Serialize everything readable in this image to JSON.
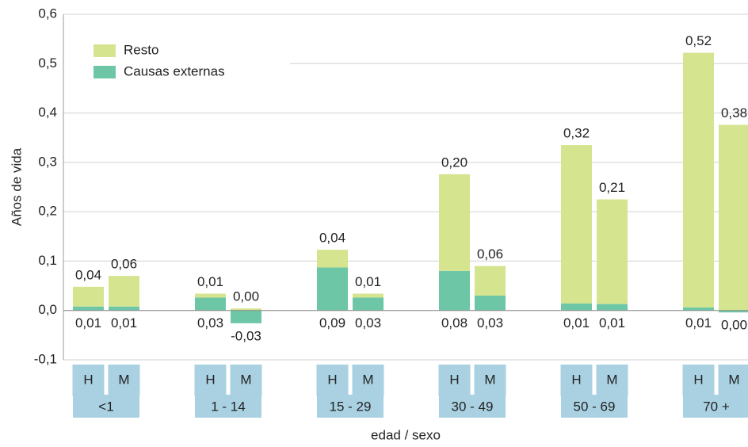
{
  "chart_data": {
    "type": "bar",
    "stacked": true,
    "y_label": "Años de vida",
    "x_label": "edad / sexo",
    "groups": [
      "<1",
      "1 - 14",
      "15 - 29",
      "30 - 49",
      "50 - 69",
      "70 +"
    ],
    "categories": [
      "H",
      "M",
      "H",
      "M",
      "H",
      "M",
      "H",
      "M",
      "H",
      "M",
      "H",
      "M"
    ],
    "series": [
      {
        "name": "Causas externas",
        "color": "#6dc7a7",
        "values": [
          0.008,
          0.008,
          0.026,
          -0.026,
          0.087,
          0.026,
          0.08,
          0.03,
          0.014,
          0.013,
          0.006,
          -0.004
        ],
        "value_labels": [
          "0,01",
          "0,01",
          "0,03",
          "-0,03",
          "0,09",
          "0,03",
          "0,08",
          "0,03",
          "0,01",
          "0,01",
          "0,01",
          "0,00"
        ]
      },
      {
        "name": "Resto",
        "color": "#d5e48f",
        "values": [
          0.04,
          0.062,
          0.008,
          0.004,
          0.036,
          0.008,
          0.196,
          0.06,
          0.321,
          0.212,
          0.516,
          0.376
        ],
        "value_labels": [
          "0,04",
          "0,06",
          "0,01",
          "0,00",
          "0,04",
          "0,01",
          "0,20",
          "0,06",
          "0,32",
          "0,21",
          "0,52",
          "0,38"
        ]
      }
    ],
    "ylim": [
      -0.1,
      0.6
    ],
    "yticks": [
      {
        "value": -0.1,
        "label": "-0,1"
      },
      {
        "value": 0,
        "label": "0,0"
      },
      {
        "value": 0.1,
        "label": "0,1"
      },
      {
        "value": 0.2,
        "label": "0,2"
      },
      {
        "value": 0.3,
        "label": "0,3"
      },
      {
        "value": 0.4,
        "label": "0,4"
      },
      {
        "value": 0.5,
        "label": "0,5"
      },
      {
        "value": 0.6,
        "label": "0,6"
      }
    ],
    "grid": true,
    "legend": "upper left"
  }
}
